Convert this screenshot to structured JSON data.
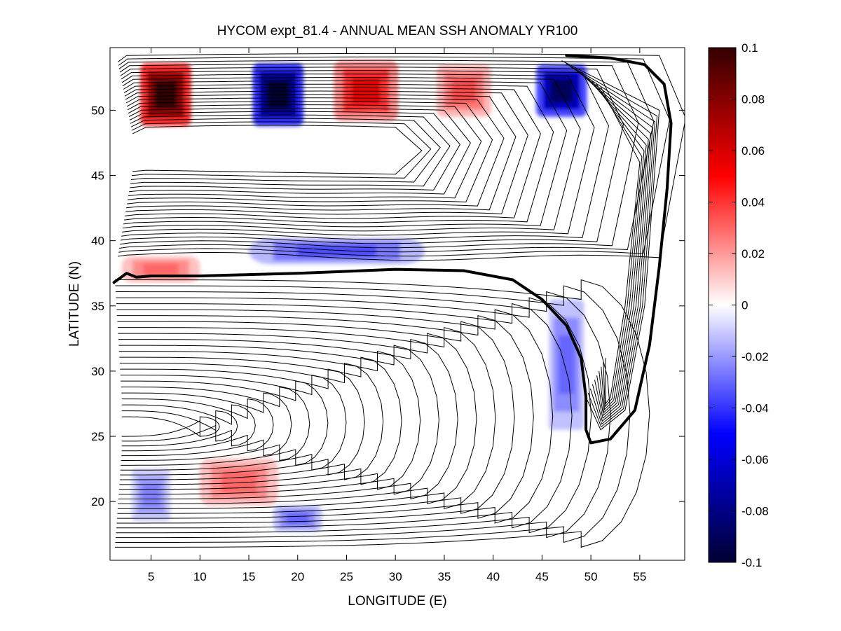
{
  "chart_data": {
    "type": "heatmap",
    "title": "HYCOM expt_81.4 - ANNUAL MEAN SSH ANOMALY YR100",
    "xlabel": "LONGITUDE (E)",
    "ylabel": "LATITUDE (N)",
    "xlim": [
      0.8,
      59.6
    ],
    "ylim": [
      15.5,
      54.8
    ],
    "x_ticks": [
      5,
      10,
      15,
      20,
      25,
      30,
      35,
      40,
      45,
      50,
      55
    ],
    "y_ticks": [
      20,
      25,
      30,
      35,
      40,
      45,
      50
    ],
    "colorbar": {
      "range": [
        -0.1,
        0.1
      ],
      "ticks": [
        -0.1,
        -0.08,
        -0.06,
        -0.04,
        -0.02,
        0,
        0.02,
        0.04,
        0.06,
        0.08,
        0.1
      ],
      "tick_labels": [
        "-0.1",
        "-0.08",
        "-0.06",
        "-0.04",
        "-0.02",
        "0",
        "0.02",
        "0.04",
        "0.06",
        "0.08",
        "0.1"
      ],
      "colors": [
        "#000033",
        "#0000ff",
        "#ffffff",
        "#ff0000",
        "#330000"
      ]
    },
    "anomaly_features": [
      {
        "lon": 6.5,
        "lat": 51.2,
        "value": 0.1,
        "rx": 2.6,
        "ry": 2.4
      },
      {
        "lon": 18,
        "lat": 51.2,
        "value": -0.1,
        "rx": 2.6,
        "ry": 2.4
      },
      {
        "lon": 27,
        "lat": 51.5,
        "value": 0.055,
        "rx": 3.3,
        "ry": 2.3
      },
      {
        "lon": 37,
        "lat": 51.5,
        "value": 0.035,
        "rx": 2.8,
        "ry": 2.0
      },
      {
        "lon": 47,
        "lat": 51.5,
        "value": -0.09,
        "rx": 2.6,
        "ry": 2.0
      },
      {
        "lon": 24,
        "lat": 39.2,
        "value": -0.035,
        "rx": 9.0,
        "ry": 1.0
      },
      {
        "lon": 6,
        "lat": 37.8,
        "value": 0.03,
        "rx": 4.0,
        "ry": 1.0
      },
      {
        "lon": 47.5,
        "lat": 30.5,
        "value": -0.03,
        "rx": 1.8,
        "ry": 5.0
      },
      {
        "lon": 14,
        "lat": 21.5,
        "value": 0.03,
        "rx": 4.0,
        "ry": 1.8
      },
      {
        "lon": 20,
        "lat": 18.7,
        "value": -0.03,
        "rx": 2.5,
        "ry": 1.0
      },
      {
        "lon": 5,
        "lat": 20.5,
        "value": -0.025,
        "rx": 2.0,
        "ry": 2.0
      }
    ],
    "highlighted_contours": [
      {
        "name": "thick contour jet",
        "points": [
          [
            1.2,
            36.8
          ],
          [
            2.5,
            37.5
          ],
          [
            3.5,
            37.2
          ],
          [
            5,
            37.3
          ],
          [
            10,
            37.3
          ],
          [
            20,
            37.5
          ],
          [
            30,
            37.8
          ],
          [
            37,
            37.7
          ],
          [
            42,
            37.0
          ],
          [
            45,
            35.5
          ],
          [
            47.5,
            33.5
          ],
          [
            49,
            31.0
          ],
          [
            49.5,
            28.0
          ],
          [
            49.5,
            25.5
          ],
          [
            50,
            24.5
          ],
          [
            52,
            24.8
          ],
          [
            54.5,
            27.0
          ],
          [
            56,
            32.0
          ],
          [
            57,
            38.0
          ],
          [
            57.8,
            44.0
          ],
          [
            58.2,
            49.0
          ],
          [
            57.5,
            52.0
          ],
          [
            55.5,
            53.5
          ],
          [
            52,
            54.0
          ],
          [
            47.5,
            54.2
          ]
        ]
      }
    ]
  }
}
